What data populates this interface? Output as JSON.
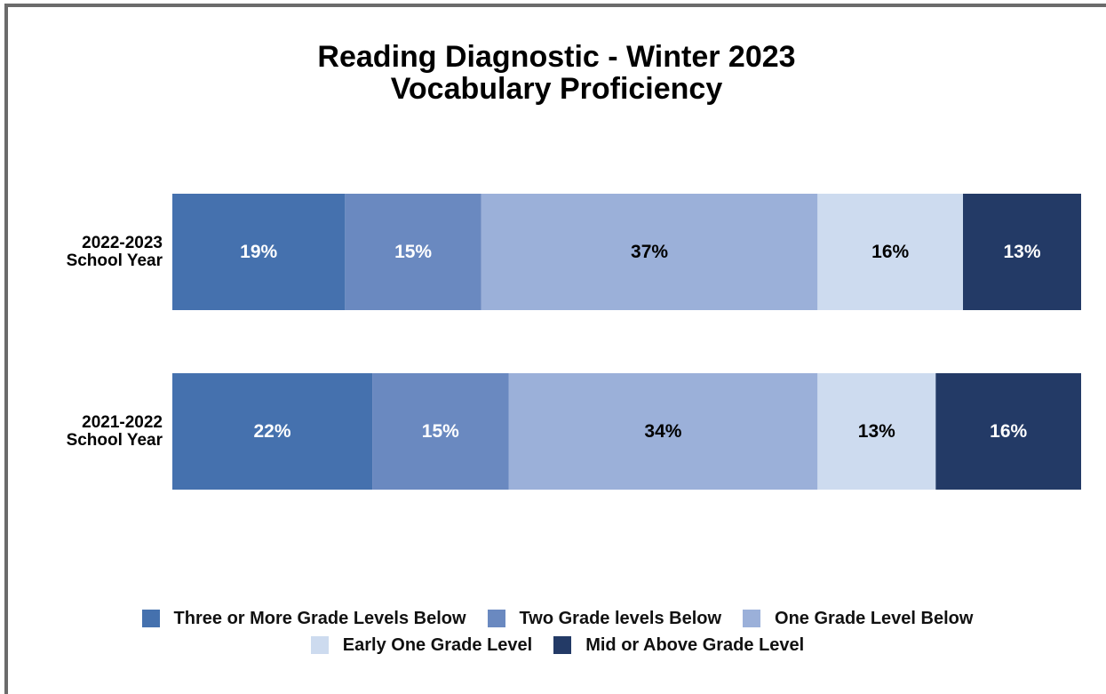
{
  "chart_data": {
    "type": "stacked-bar-horizontal",
    "title": "Reading Diagnostic - Winter 2023",
    "subtitle": "Vocabulary Proficiency",
    "categories": [
      "2022-2023 School Year",
      "2021-2022 School Year"
    ],
    "xlim": [
      0,
      100
    ],
    "series": [
      {
        "name": "Three or More Grade Levels Below",
        "color": "#4571ae",
        "values": [
          19,
          22
        ],
        "value_labels": [
          "19%",
          "22%"
        ]
      },
      {
        "name": "Two Grade levels Below",
        "color": "#6a89c0",
        "values": [
          15,
          15
        ],
        "value_labels": [
          "15%",
          "15%"
        ]
      },
      {
        "name": "One Grade Level Below",
        "color": "#9bb0d9",
        "values": [
          37,
          34
        ],
        "value_labels": [
          "37%",
          "34%"
        ]
      },
      {
        "name": "Early One Grade Level",
        "color": "#cddbef",
        "values": [
          16,
          13
        ],
        "value_labels": [
          "16%",
          "13%"
        ]
      },
      {
        "name": "Mid or Above Grade Level",
        "color": "#233a66",
        "values": [
          13,
          16
        ],
        "value_labels": [
          "13%",
          "16%"
        ]
      }
    ]
  }
}
